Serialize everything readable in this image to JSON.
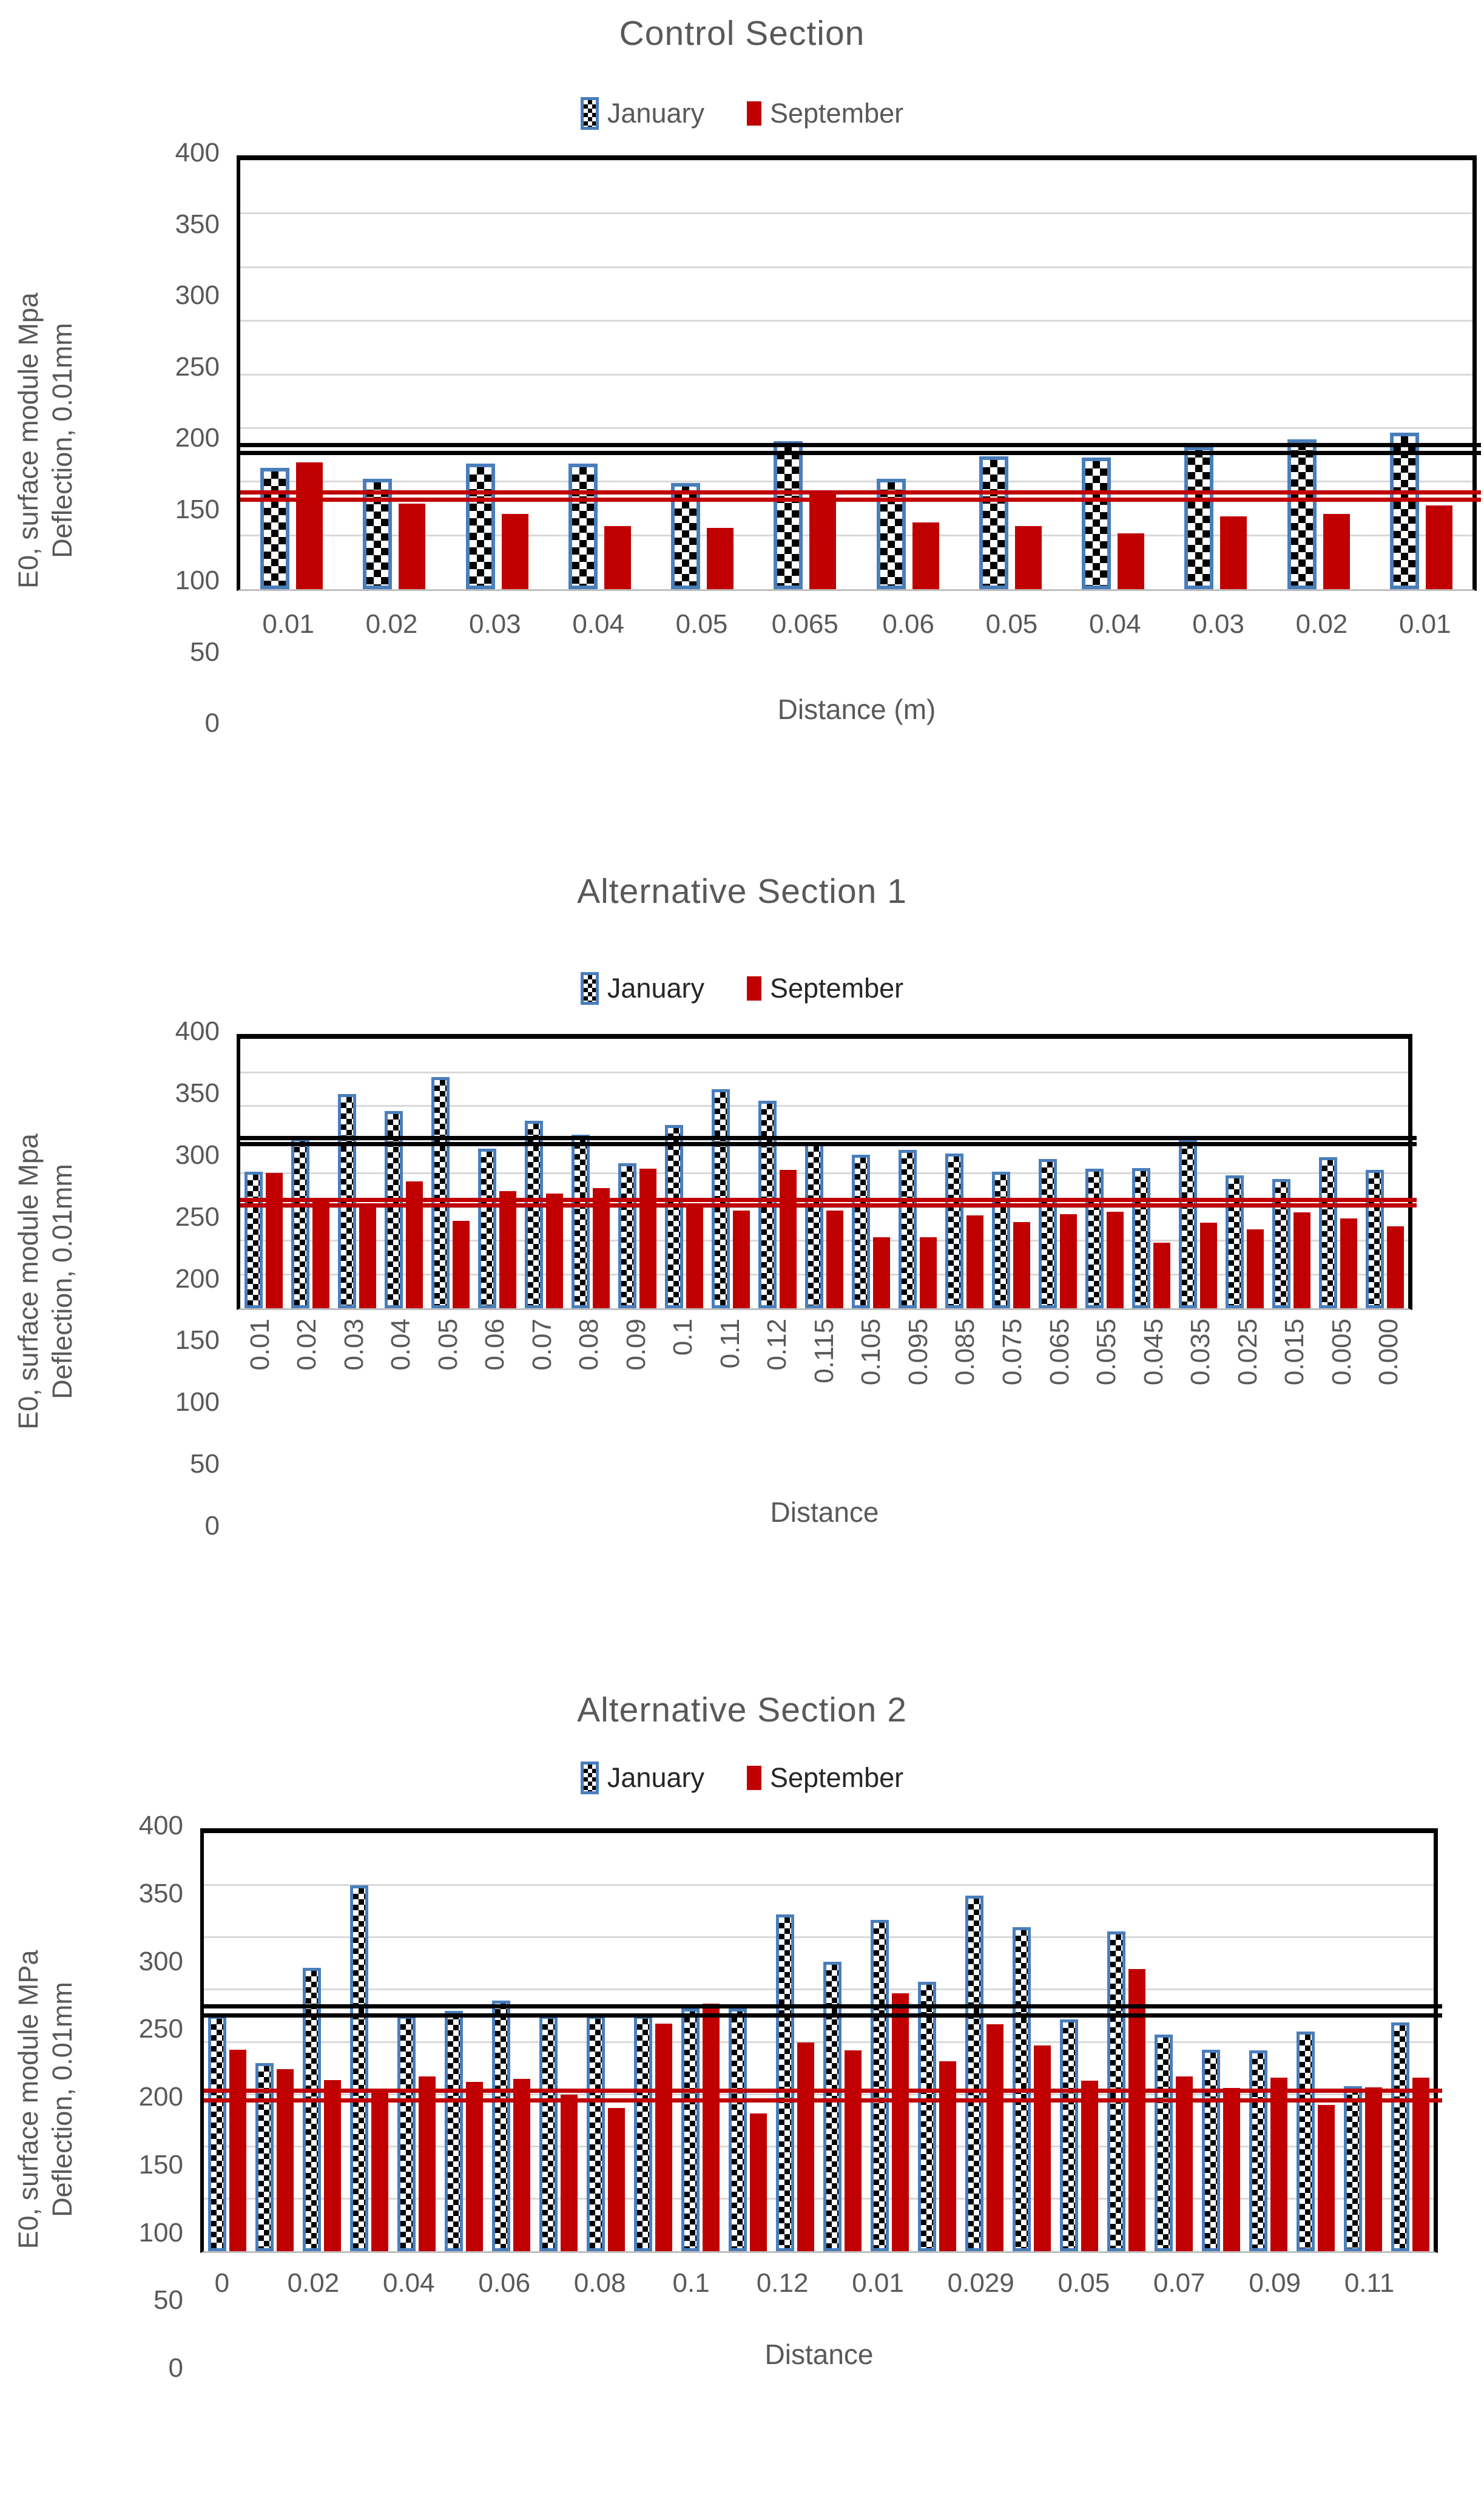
{
  "colors": {
    "september_bar": "#C00000",
    "january_border": "#4A7EBB",
    "january_fill_pattern": "black-white-checker",
    "reference_black": "#000000",
    "reference_red": "#C00000",
    "gridline": "#D9D9D9",
    "text": "#595959"
  },
  "chart_data": [
    {
      "type": "bar",
      "title": "Control Section",
      "ylabel_line1": "E0, surface module Mpa",
      "ylabel_line2": "Deflection, 0.01mm",
      "xlabel": "Distance (m)",
      "ylim": [
        0,
        400
      ],
      "ytick_step": 50,
      "yticks": [
        "400",
        "350",
        "300",
        "250",
        "200",
        "150",
        "100",
        "50",
        "0"
      ],
      "grid": true,
      "legend_position": "top",
      "categories": [
        "0.01",
        "0.02",
        "0.03",
        "0.04",
        "0.05",
        "0.065",
        "0.06",
        "0.05",
        "0.04",
        "0.03",
        "0.02",
        "0.01"
      ],
      "series": [
        {
          "name": "January",
          "style": "checkered",
          "values": [
            113,
            103,
            117,
            117,
            99,
            138,
            103,
            124,
            123,
            133,
            140,
            146
          ]
        },
        {
          "name": "September",
          "style": "solid",
          "values": [
            118,
            80,
            70,
            59,
            57,
            91,
            62,
            59,
            52,
            68,
            70,
            78
          ]
        }
      ],
      "reference_lines": [
        {
          "color": "#000000",
          "value": 134
        },
        {
          "color": "#000000",
          "value": 127
        },
        {
          "color": "#C00000",
          "value": 90
        },
        {
          "color": "#C00000",
          "value": 83
        }
      ]
    },
    {
      "type": "bar",
      "title": "Alternative Section 1",
      "ylabel_line1": "E0, surface module Mpa",
      "ylabel_line2": "Deflection, 0.01mm",
      "xlabel": "Distance",
      "ylim": [
        0,
        400
      ],
      "ytick_step": 50,
      "yticks": [
        "400",
        "350",
        "300",
        "250",
        "200",
        "150",
        "100",
        "50",
        "0"
      ],
      "grid": true,
      "legend_position": "top",
      "categories": [
        "0.01",
        "0.02",
        "0.03",
        "0.04",
        "0.05",
        "0.06",
        "0.07",
        "0.08",
        "0.09",
        "0.1",
        "0.11",
        "0.12",
        "0.115",
        "0.105",
        "0.095",
        "0.085",
        "0.075",
        "0.065",
        "0.055",
        "0.045",
        "0.035",
        "0.025",
        "0.015",
        "0.005",
        "0.000"
      ],
      "series": [
        {
          "name": "January",
          "style": "checkered",
          "values": [
            203,
            252,
            318,
            293,
            343,
            237,
            278,
            258,
            215,
            272,
            325,
            308,
            245,
            228,
            235,
            230,
            203,
            222,
            207,
            208,
            250,
            197,
            192,
            224,
            205
          ]
        },
        {
          "name": "September",
          "style": "solid",
          "values": [
            201,
            160,
            152,
            188,
            130,
            174,
            170,
            178,
            207,
            150,
            145,
            205,
            145,
            105,
            105,
            138,
            128,
            140,
            143,
            97,
            127,
            117,
            142,
            133,
            122
          ]
        }
      ],
      "reference_lines": [
        {
          "color": "#000000",
          "value": 252
        },
        {
          "color": "#000000",
          "value": 243
        },
        {
          "color": "#C00000",
          "value": 160
        },
        {
          "color": "#C00000",
          "value": 152
        }
      ]
    },
    {
      "type": "bar",
      "title": "Alternative Section  2",
      "ylabel_line1": "E0, surface module MPa",
      "ylabel_line2": "Deflection, 0.01mm",
      "xlabel": "Distance",
      "ylim": [
        0,
        400
      ],
      "ytick_step": 50,
      "yticks": [
        "400",
        "350",
        "300",
        "250",
        "200",
        "150",
        "100",
        "50",
        "0"
      ],
      "grid": true,
      "legend_position": "top",
      "tick_labels": [
        "0",
        "0.02",
        "0.04",
        "0.06",
        "0.08",
        "0.1",
        "0.12",
        "0.01",
        "0.029",
        "0.05",
        "0.07",
        "0.09",
        "0.11"
      ],
      "label_interval": 2,
      "categories": [
        "0",
        "",
        "0.02",
        "",
        "0.04",
        "",
        "0.06",
        "",
        "0.08",
        "",
        "0.1",
        "",
        "0.12",
        "",
        "0.01",
        "",
        "0.029",
        "",
        "0.05",
        "",
        "0.07",
        "",
        "0.09",
        "",
        "0.11",
        ""
      ],
      "series": [
        {
          "name": "January",
          "style": "checkered",
          "values": [
            225,
            180,
            271,
            350,
            225,
            230,
            240,
            225,
            225,
            225,
            232,
            232,
            322,
            277,
            317,
            258,
            340,
            310,
            222,
            306,
            207,
            193,
            192,
            210,
            158,
            219
          ]
        },
        {
          "name": "September",
          "style": "solid",
          "values": [
            193,
            174,
            164,
            153,
            167,
            162,
            165,
            150,
            137,
            218,
            237,
            132,
            200,
            192,
            247,
            182,
            217,
            197,
            163,
            270,
            167,
            156,
            166,
            140,
            157,
            166
          ]
        }
      ],
      "reference_lines": [
        {
          "color": "#000000",
          "value": 234
        },
        {
          "color": "#000000",
          "value": 225
        },
        {
          "color": "#C00000",
          "value": 153
        },
        {
          "color": "#C00000",
          "value": 144
        }
      ]
    }
  ]
}
